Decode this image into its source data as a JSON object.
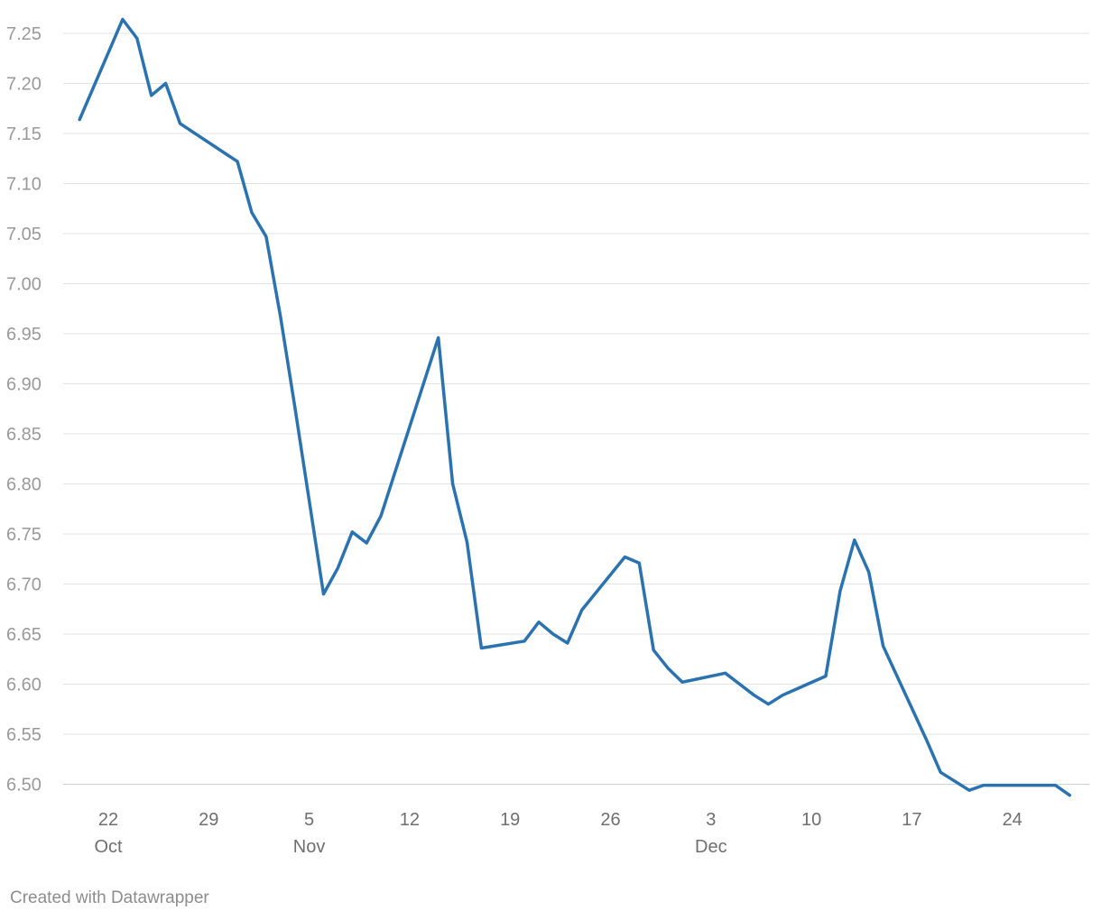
{
  "chart_data": {
    "type": "line",
    "title": "",
    "xlabel": "",
    "ylabel": "",
    "ylim": [
      6.49,
      7.26
    ],
    "y_ticks": [
      "6.50",
      "6.55",
      "6.60",
      "6.65",
      "6.70",
      "6.75",
      "6.80",
      "6.85",
      "6.90",
      "6.95",
      "7.00",
      "7.05",
      "7.10",
      "7.15",
      "7.20",
      "7.25"
    ],
    "x_ticks": [
      {
        "date": "2018-10-22",
        "day": "22",
        "month": "Oct"
      },
      {
        "date": "2018-10-29",
        "day": "29",
        "month": ""
      },
      {
        "date": "2018-11-05",
        "day": "5",
        "month": "Nov"
      },
      {
        "date": "2018-11-12",
        "day": "12",
        "month": ""
      },
      {
        "date": "2018-11-19",
        "day": "19",
        "month": ""
      },
      {
        "date": "2018-11-26",
        "day": "26",
        "month": ""
      },
      {
        "date": "2018-12-03",
        "day": "3",
        "month": "Dec"
      },
      {
        "date": "2018-12-10",
        "day": "10",
        "month": ""
      },
      {
        "date": "2018-12-17",
        "day": "17",
        "month": ""
      },
      {
        "date": "2018-12-24",
        "day": "24",
        "month": ""
      }
    ],
    "grid": true,
    "line_color": "#2a73b0",
    "series": [
      {
        "x": [
          "2018-10-20",
          "2018-10-23",
          "2018-10-24",
          "2018-10-25",
          "2018-10-26",
          "2018-10-27",
          "2018-10-31",
          "2018-11-01",
          "2018-11-02",
          "2018-11-03",
          "2018-11-04",
          "2018-11-06",
          "2018-11-07",
          "2018-11-08",
          "2018-11-09",
          "2018-11-10",
          "2018-11-14",
          "2018-11-15",
          "2018-11-16",
          "2018-11-17",
          "2018-11-20",
          "2018-11-21",
          "2018-11-22",
          "2018-11-23",
          "2018-11-24",
          "2018-11-27",
          "2018-11-28",
          "2018-11-29",
          "2018-11-30",
          "2018-12-01",
          "2018-12-04",
          "2018-12-05",
          "2018-12-06",
          "2018-12-07",
          "2018-12-08",
          "2018-12-11",
          "2018-12-12",
          "2018-12-13",
          "2018-12-14",
          "2018-12-15",
          "2018-12-18",
          "2018-12-19",
          "2018-12-21",
          "2018-12-22",
          "2018-12-27",
          "2018-12-28"
        ],
        "values": [
          7.164,
          7.264,
          7.245,
          7.188,
          7.2,
          7.16,
          7.122,
          7.071,
          7.047,
          6.967,
          6.877,
          6.69,
          6.716,
          6.752,
          6.741,
          6.768,
          6.946,
          6.8,
          6.742,
          6.636,
          6.643,
          6.662,
          6.65,
          6.641,
          6.674,
          6.727,
          6.721,
          6.634,
          6.616,
          6.602,
          6.611,
          6.6,
          6.589,
          6.58,
          6.589,
          6.608,
          6.693,
          6.744,
          6.712,
          6.638,
          6.545,
          6.512,
          6.494,
          6.499,
          6.499,
          6.489
        ]
      }
    ]
  },
  "footer": {
    "credit": "Created with Datawrapper"
  }
}
